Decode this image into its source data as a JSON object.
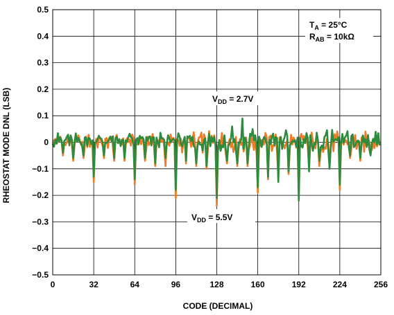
{
  "chart_data": {
    "type": "line",
    "title": "",
    "xlabel": "CODE (DECIMAL)",
    "ylabel": "RHEOSTAT MODE DNL (LSB)",
    "xlim": [
      0,
      256
    ],
    "ylim": [
      -0.5,
      0.5
    ],
    "xticks": [
      "0",
      "32",
      "64",
      "96",
      "128",
      "160",
      "192",
      "224",
      "256"
    ],
    "yticks": [
      "0.5",
      "0.4",
      "0.3",
      "0.2",
      "0.1",
      "0",
      "−0.1",
      "−0.2",
      "−0.3",
      "−0.4",
      "−0.5"
    ],
    "grid": true,
    "series": [
      {
        "name": "VDD = 5.5V",
        "color": "#f07b22",
        "baseline": 0.01,
        "spikes": [
          {
            "x": 8,
            "y": -0.05
          },
          {
            "x": 16,
            "y": -0.07
          },
          {
            "x": 24,
            "y": -0.06
          },
          {
            "x": 32,
            "y": -0.15
          },
          {
            "x": 40,
            "y": -0.06
          },
          {
            "x": 48,
            "y": -0.07
          },
          {
            "x": 56,
            "y": -0.07
          },
          {
            "x": 64,
            "y": -0.16
          },
          {
            "x": 72,
            "y": -0.07
          },
          {
            "x": 80,
            "y": -0.09
          },
          {
            "x": 88,
            "y": -0.09
          },
          {
            "x": 96,
            "y": -0.21
          },
          {
            "x": 104,
            "y": -0.08
          },
          {
            "x": 112,
            "y": -0.09
          },
          {
            "x": 120,
            "y": -0.1
          },
          {
            "x": 128,
            "y": -0.24
          },
          {
            "x": 136,
            "y": -0.08
          },
          {
            "x": 144,
            "y": -0.09
          },
          {
            "x": 152,
            "y": -0.09
          },
          {
            "x": 160,
            "y": -0.19
          },
          {
            "x": 168,
            "y": -0.14
          },
          {
            "x": 176,
            "y": -0.13
          },
          {
            "x": 184,
            "y": -0.12
          },
          {
            "x": 192,
            "y": -0.2
          },
          {
            "x": 200,
            "y": -0.1
          },
          {
            "x": 208,
            "y": -0.09
          },
          {
            "x": 216,
            "y": -0.08
          },
          {
            "x": 224,
            "y": -0.18
          },
          {
            "x": 232,
            "y": -0.06
          },
          {
            "x": 240,
            "y": -0.07
          },
          {
            "x": 248,
            "y": -0.03
          }
        ]
      },
      {
        "name": "VDD = 2.7V",
        "color": "#2e8b3e",
        "baseline": 0.015,
        "spikes": [
          {
            "x": 8,
            "y": -0.04
          },
          {
            "x": 16,
            "y": -0.06
          },
          {
            "x": 24,
            "y": -0.05
          },
          {
            "x": 32,
            "y": -0.13
          },
          {
            "x": 40,
            "y": -0.05
          },
          {
            "x": 48,
            "y": -0.06
          },
          {
            "x": 56,
            "y": -0.06
          },
          {
            "x": 64,
            "y": -0.14
          },
          {
            "x": 72,
            "y": -0.06
          },
          {
            "x": 80,
            "y": -0.08
          },
          {
            "x": 88,
            "y": -0.06
          },
          {
            "x": 96,
            "y": -0.18
          },
          {
            "x": 104,
            "y": -0.07
          },
          {
            "x": 112,
            "y": -0.08
          },
          {
            "x": 120,
            "y": -0.09
          },
          {
            "x": 128,
            "y": -0.21
          },
          {
            "x": 136,
            "y": -0.07
          },
          {
            "x": 144,
            "y": -0.08
          },
          {
            "x": 152,
            "y": -0.08
          },
          {
            "x": 160,
            "y": -0.17
          },
          {
            "x": 168,
            "y": -0.13
          },
          {
            "x": 176,
            "y": -0.15
          },
          {
            "x": 184,
            "y": -0.11
          },
          {
            "x": 192,
            "y": -0.22
          },
          {
            "x": 200,
            "y": -0.11
          },
          {
            "x": 208,
            "y": -0.07
          },
          {
            "x": 216,
            "y": -0.1
          },
          {
            "x": 224,
            "y": -0.16
          },
          {
            "x": 232,
            "y": -0.05
          },
          {
            "x": 240,
            "y": -0.06
          },
          {
            "x": 248,
            "y": -0.05
          }
        ],
        "peaks": [
          {
            "x": 136,
            "y": 0.07
          },
          {
            "x": 140,
            "y": 0.06
          },
          {
            "x": 144,
            "y": 0.12
          },
          {
            "x": 148,
            "y": 0.09
          },
          {
            "x": 152,
            "y": 0.11
          },
          {
            "x": 156,
            "y": 0.05
          },
          {
            "x": 120,
            "y": 0.04
          },
          {
            "x": 112,
            "y": 0.03
          },
          {
            "x": 200,
            "y": 0.03
          },
          {
            "x": 216,
            "y": 0.03
          },
          {
            "x": 252,
            "y": 0.04
          }
        ]
      }
    ],
    "annotations": {
      "vdd27": {
        "pre": "V",
        "sub": "DD",
        "post": " = 2.7V"
      },
      "vdd55": {
        "pre": "V",
        "sub": "DD",
        "post": " = 5.5V"
      },
      "ta": {
        "pre": "T",
        "sub": "A",
        "post": " = 25°C"
      },
      "rab": {
        "pre": "R",
        "sub": "AB",
        "post": " = 10kΩ"
      }
    }
  }
}
